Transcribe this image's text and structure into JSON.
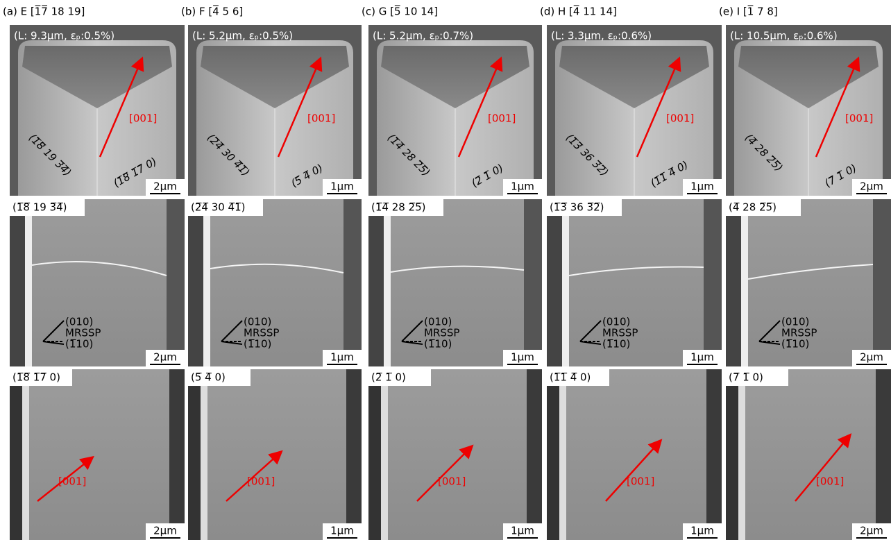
{
  "columns": [
    {
      "title": "(a) E [1̅7̅ 18 19]",
      "top": {
        "info": "(L: 9.3μm, εₚ:0.5%)",
        "left_plane": "(1̅8̅ 19 3̅4̅)",
        "right_plane": "(1̅8̅ 1̅7̅ 0)",
        "arrow_label": "[001]",
        "scale": "2μm"
      },
      "middle": {
        "plane": "(1̅8̅ 19 3̅4̅)",
        "legend": [
          "(010)",
          "MRSSP",
          "(1̅10)"
        ],
        "scale": "2μm"
      },
      "bottom": {
        "plane": "(1̅8̅ 1̅7̅ 0)",
        "arrow_label": "[001]",
        "scale": "2μm"
      }
    },
    {
      "title": "(b) F [4̅ 5 6]",
      "top": {
        "info": "(L: 5.2μm, εₚ:0.5%)",
        "left_plane": "(2̅4̅ 30 4̅1̅)",
        "right_plane": "(5̅ 4̅ 0)",
        "arrow_label": "[001]",
        "scale": "1μm"
      },
      "middle": {
        "plane": "(2̅4̅ 30 4̅1̅)",
        "legend": [
          "(010)",
          "MRSSP",
          "(1̅10)"
        ],
        "scale": "1μm"
      },
      "bottom": {
        "plane": "(5̅ 4̅ 0)",
        "arrow_label": "[001]",
        "scale": "1μm"
      }
    },
    {
      "title": "(c) G [5̅ 10 14]",
      "top": {
        "info": "(L: 5.2μm, εₚ:0.7%)",
        "left_plane": "(1̅4̅ 28 2̅5̅)",
        "right_plane": "(2̅ 1̅ 0)",
        "arrow_label": "[001]",
        "scale": "1μm"
      },
      "middle": {
        "plane": "(1̅4̅ 28 2̅5̅)",
        "legend": [
          "(010)",
          "MRSSP",
          "(1̅10)"
        ],
        "scale": "1μm"
      },
      "bottom": {
        "plane": "(2̅ 1̅ 0)",
        "arrow_label": "[001]",
        "scale": "1μm"
      }
    },
    {
      "title": "(d) H [4̅ 11 14]",
      "top": {
        "info": "(L: 3.3μm, εₚ:0.6%)",
        "left_plane": "(1̅3̅ 36 3̅2̅)",
        "right_plane": "(1̅1̅ 4̅ 0)",
        "arrow_label": "[001]",
        "scale": "1μm"
      },
      "middle": {
        "plane": "(1̅3̅ 36 3̅2̅)",
        "legend": [
          "(010)",
          "MRSSP",
          "(1̅10)"
        ],
        "scale": "1μm"
      },
      "bottom": {
        "plane": "(1̅1̅ 4̅ 0)",
        "arrow_label": "[001]",
        "scale": "1μm"
      }
    },
    {
      "title": "(e) I [1̅ 7 8]",
      "top": {
        "info": "(L: 10.5μm, εₚ:0.6%)",
        "left_plane": "(4̅ 28 2̅5̅)",
        "right_plane": "(7̅ 1̅ 0)",
        "arrow_label": "[001]",
        "scale": "2μm"
      },
      "middle": {
        "plane": "(4̅ 28 2̅5̅)",
        "legend": [
          "(010)",
          "MRSSP",
          "(1̅10)"
        ],
        "scale": "2μm"
      },
      "bottom": {
        "plane": "(7̅ 1̅ 0)",
        "arrow_label": "[001]",
        "scale": "2μm"
      }
    }
  ]
}
